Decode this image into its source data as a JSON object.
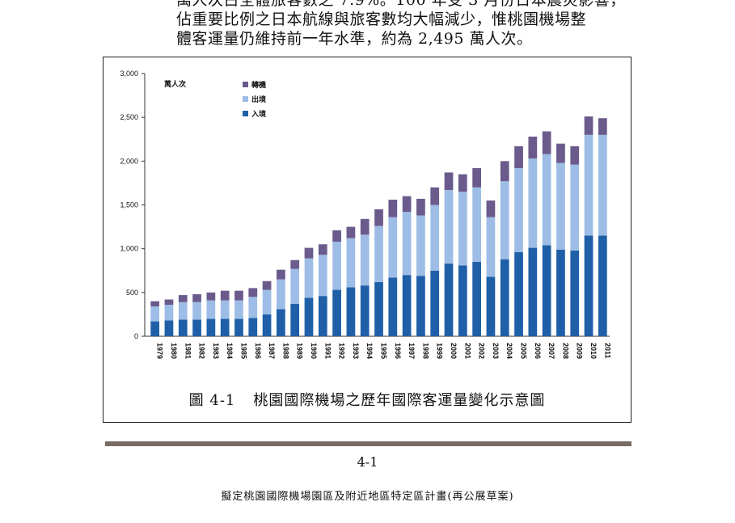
{
  "paragraph": {
    "lines": [
      "萬人次占全體旅客數之 7.9%。100 年受 3 月份日本震災影響，",
      "佔重要比例之日本航線與旅客數均大幅減少，惟桃園機場整",
      "體客運量仍維持前一年水準，約為 2,495 萬人次。"
    ]
  },
  "figure": {
    "caption_number": "圖 4-1",
    "caption_text": "桃園國際機場之歷年國際客運量變化示意圖"
  },
  "chart_data": {
    "type": "bar",
    "stacked": true,
    "unit_label": "萬人次",
    "categories": [
      "1979",
      "1980",
      "1981",
      "1982",
      "1983",
      "1984",
      "1985",
      "1986",
      "1987",
      "1988",
      "1989",
      "1990",
      "1991",
      "1992",
      "1993",
      "1994",
      "1995",
      "1996",
      "1997",
      "1998",
      "1999",
      "2000",
      "2001",
      "2002",
      "2003",
      "2004",
      "2005",
      "2006",
      "2007",
      "2008",
      "2009",
      "2010",
      "2011"
    ],
    "series": [
      {
        "name": "入境",
        "color": "#1f5fa8",
        "values": [
          170,
          180,
          190,
          190,
          200,
          200,
          200,
          210,
          250,
          310,
          370,
          440,
          460,
          530,
          560,
          580,
          620,
          670,
          700,
          690,
          750,
          830,
          810,
          850,
          680,
          880,
          960,
          1010,
          1040,
          990,
          980,
          1150,
          1150
        ]
      },
      {
        "name": "出境",
        "color": "#9dbde6",
        "values": [
          170,
          180,
          200,
          200,
          210,
          210,
          210,
          240,
          280,
          340,
          400,
          450,
          470,
          550,
          560,
          580,
          640,
          690,
          720,
          690,
          750,
          840,
          840,
          850,
          680,
          890,
          960,
          1020,
          1040,
          990,
          980,
          1150,
          1150
        ]
      },
      {
        "name": "轉機",
        "color": "#6b5b8c",
        "values": [
          60,
          60,
          80,
          90,
          90,
          110,
          110,
          100,
          100,
          110,
          100,
          120,
          120,
          130,
          130,
          180,
          190,
          200,
          180,
          190,
          200,
          200,
          200,
          220,
          190,
          230,
          250,
          250,
          260,
          220,
          210,
          210,
          190
        ]
      }
    ],
    "legend_order": [
      "轉機",
      "出境",
      "入境"
    ],
    "ylim": [
      0,
      3000
    ],
    "yticks": [
      "0",
      "500",
      "1,000",
      "1,500",
      "2,000",
      "2,500",
      "3,000"
    ]
  },
  "page_number": "4-1",
  "footer_text": "擬定桃園國際機場園區及附近地區特定區計畫(再公展草案)"
}
